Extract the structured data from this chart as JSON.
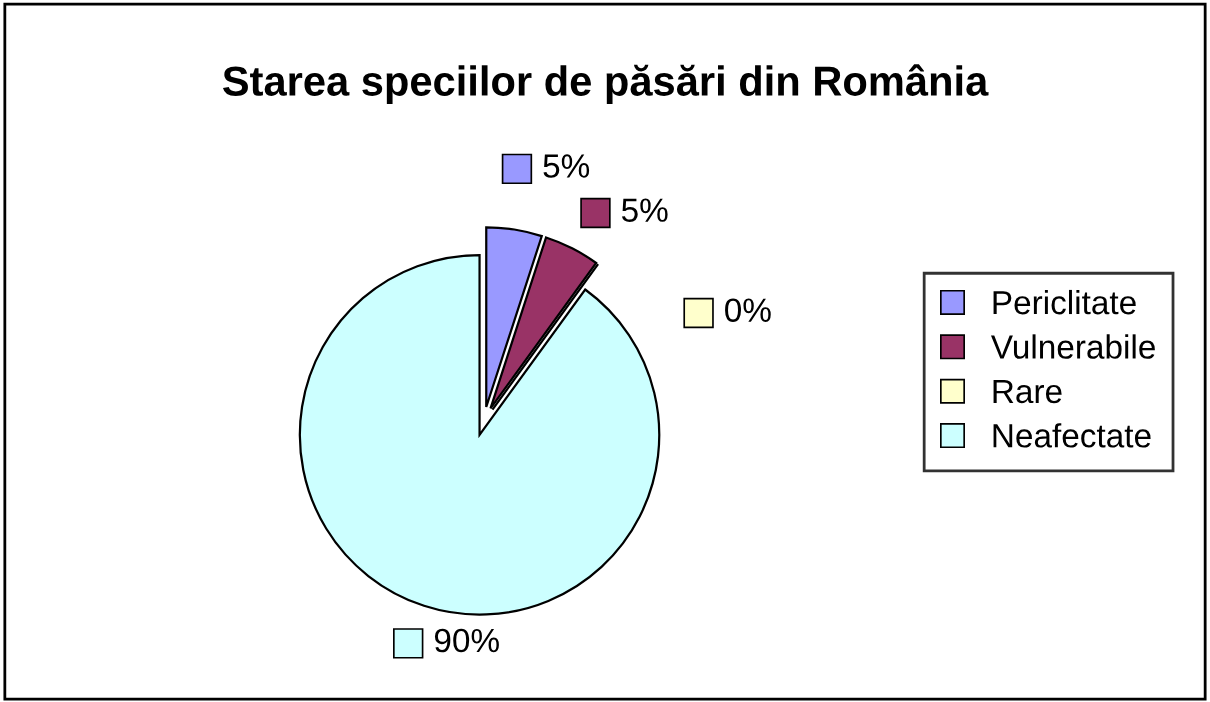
{
  "chart_data": {
    "type": "pie",
    "title": "Starea speciilor de păsări din România",
    "categories": [
      "Periclitate",
      "Vulnerabile",
      "Rare",
      "Neafectate"
    ],
    "values": [
      5,
      5,
      0,
      90
    ],
    "colors": [
      "#9999ff",
      "#993366",
      "#ffffcc",
      "#ccffff"
    ],
    "value_labels": [
      "5%",
      "5%",
      "0%",
      "90%"
    ],
    "legend": "right"
  }
}
